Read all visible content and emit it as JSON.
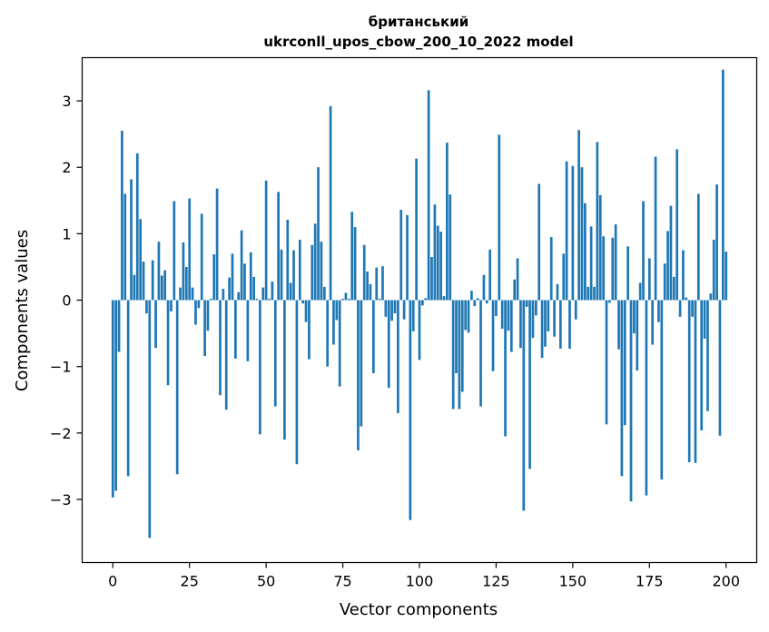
{
  "colors": {
    "bar": "#1f77b4",
    "axis": "#000000",
    "background": "#ffffff"
  },
  "chart_data": {
    "type": "bar",
    "title_line1": "британський",
    "title_line2": "ukrconll_upos_cbow_200_10_2022 model",
    "xlabel": "Vector components",
    "ylabel": "Components values",
    "xlim": [
      -10,
      210
    ],
    "ylim": [
      -3.95,
      3.65
    ],
    "xticks": [
      0,
      25,
      50,
      75,
      100,
      125,
      150,
      175,
      200
    ],
    "xtick_labels": [
      "0",
      "25",
      "50",
      "75",
      "100",
      "125",
      "150",
      "175",
      "200"
    ],
    "yticks": [
      -3,
      -2,
      -1,
      0,
      1,
      2,
      3
    ],
    "ytick_labels": [
      "−3",
      "−2",
      "−1",
      "0",
      "1",
      "2",
      "3"
    ],
    "values": [
      -2.97,
      -2.87,
      -0.78,
      2.55,
      1.6,
      -2.65,
      1.82,
      0.38,
      2.21,
      1.22,
      0.58,
      -0.2,
      -3.58,
      0.6,
      -0.72,
      0.88,
      0.37,
      0.45,
      -1.28,
      -0.17,
      1.49,
      -2.62,
      0.19,
      0.87,
      0.5,
      1.53,
      0.19,
      -0.37,
      -0.12,
      1.3,
      -0.84,
      -0.46,
      0.02,
      0.69,
      1.68,
      -1.43,
      0.17,
      -1.65,
      0.34,
      0.7,
      -0.88,
      0.12,
      1.05,
      0.55,
      -0.92,
      0.72,
      0.35,
      0.02,
      -2.02,
      0.19,
      1.8,
      0.02,
      0.28,
      -1.6,
      1.63,
      0.76,
      -2.1,
      1.21,
      0.26,
      0.75,
      -2.47,
      0.91,
      -0.05,
      -0.33,
      -0.89,
      0.83,
      1.15,
      2.0,
      0.88,
      0.2,
      -1.0,
      2.92,
      -0.67,
      -0.3,
      -1.3,
      0.02,
      0.11,
      0.02,
      1.33,
      1.1,
      -2.26,
      -1.9,
      0.83,
      0.43,
      0.24,
      -1.1,
      0.49,
      0.02,
      0.51,
      -0.25,
      -1.32,
      -0.31,
      -0.2,
      -1.7,
      1.36,
      -0.29,
      1.28,
      -3.31,
      -0.47,
      2.13,
      -0.9,
      -0.08,
      0.03,
      3.16,
      0.65,
      1.44,
      1.12,
      1.03,
      0.06,
      2.37,
      1.59,
      -1.64,
      -1.1,
      -1.64,
      -1.38,
      -0.45,
      -0.49,
      0.14,
      -0.09,
      0.03,
      -1.6,
      0.38,
      -0.05,
      0.76,
      -1.07,
      -0.24,
      2.49,
      -0.43,
      -2.05,
      -0.46,
      -0.78,
      0.31,
      0.63,
      -0.72,
      -3.17,
      -0.1,
      -2.54,
      -0.57,
      -0.23,
      1.75,
      -0.87,
      -0.7,
      -0.47,
      0.95,
      -0.55,
      0.24,
      -0.73,
      0.7,
      2.09,
      -0.73,
      2.02,
      -0.29,
      2.56,
      2.0,
      1.46,
      0.2,
      1.11,
      0.2,
      2.38,
      1.58,
      0.96,
      -1.87,
      -0.04,
      0.94,
      1.14,
      -0.74,
      -2.65,
      -1.88,
      0.81,
      -3.03,
      -0.5,
      -1.06,
      0.26,
      1.49,
      -2.94,
      0.63,
      -0.67,
      2.16,
      -0.33,
      -2.7,
      0.55,
      1.04,
      1.42,
      0.35,
      2.27,
      -0.25,
      0.75,
      0.04,
      -2.44,
      -0.25,
      -2.45,
      1.6,
      -1.96,
      -0.58,
      -1.67,
      0.1,
      0.91,
      1.74,
      -2.04,
      3.47,
      0.73
    ]
  }
}
